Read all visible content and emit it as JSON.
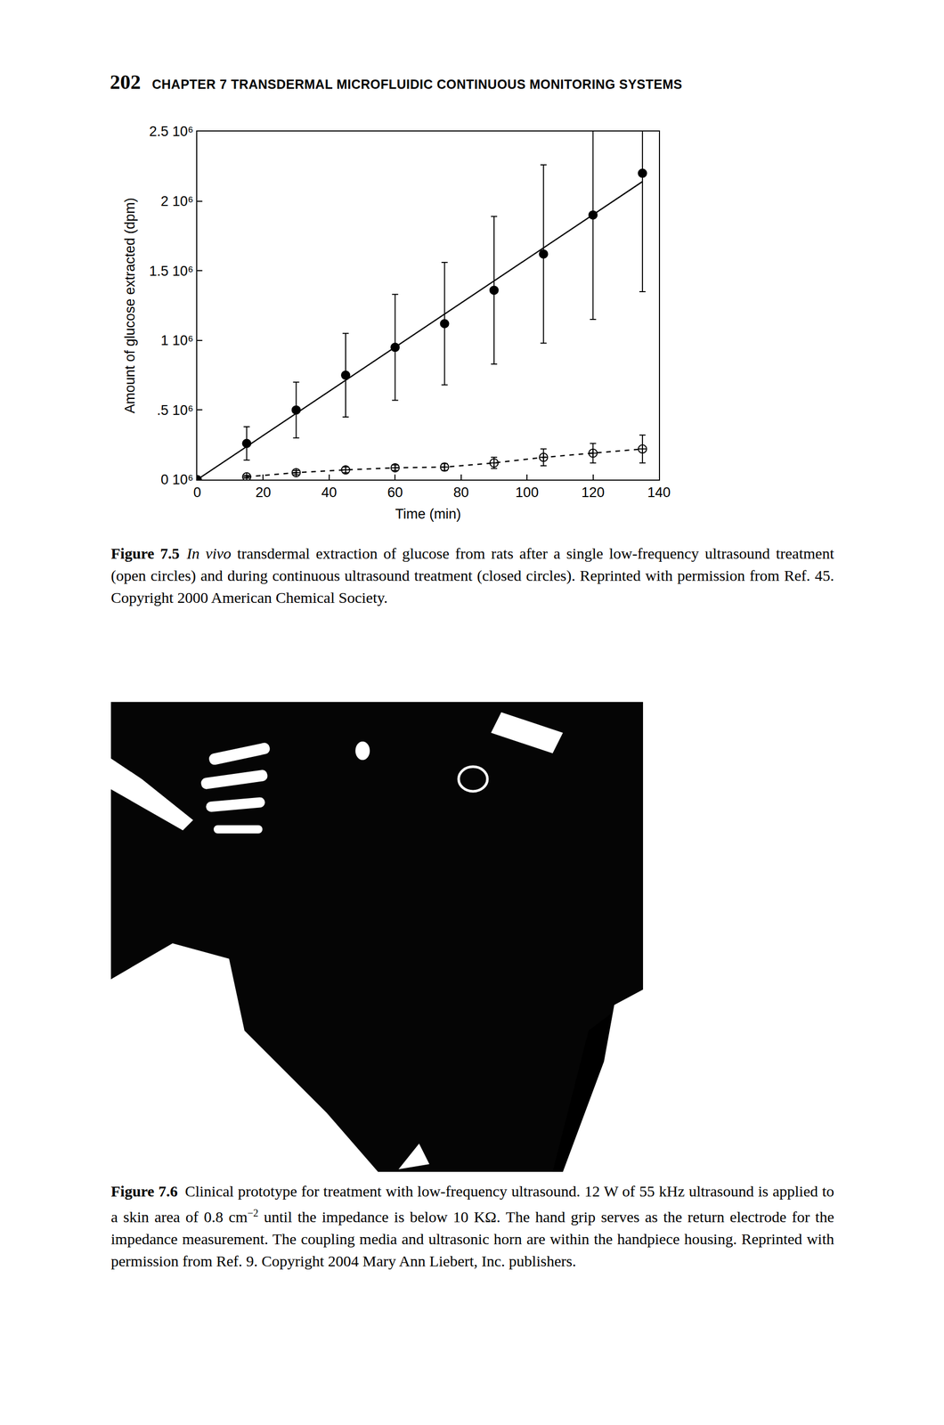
{
  "header": {
    "page": "202",
    "chapter": "CHAPTER 7  TRANSDERMAL MICROFLUIDIC CONTINUOUS MONITORING SYSTEMS"
  },
  "chart_data": {
    "type": "scatter",
    "x_label": "Time (min)",
    "y_label": "Amount of glucose extracted (dpm)",
    "xlim": [
      0,
      140
    ],
    "xticks": [
      0,
      20,
      40,
      60,
      80,
      100,
      120,
      140
    ],
    "ylim": [
      0,
      2500000
    ],
    "yticks": [
      {
        "value": 0,
        "label": "0 10⁶"
      },
      {
        "value": 500000,
        "label": ".5 10⁶"
      },
      {
        "value": 1000000,
        "label": "1 10⁶"
      },
      {
        "value": 1500000,
        "label": "1.5 10⁶"
      },
      {
        "value": 2000000,
        "label": "2 10⁶"
      },
      {
        "value": 2500000,
        "label": "2.5 10⁶"
      }
    ],
    "grid": false,
    "series": [
      {
        "type": "scatter",
        "marker": "circle",
        "color": "#000000",
        "x": [
          0,
          15,
          30,
          45,
          60,
          75,
          90,
          105,
          120,
          135
        ],
        "values": [
          0,
          260000,
          500000,
          750000,
          950000,
          1120000,
          1360000,
          1620000,
          1900000,
          2200000
        ],
        "error": [
          0,
          120000,
          200000,
          300000,
          380000,
          440000,
          530000,
          640000,
          750000,
          850000
        ]
      },
      {
        "type": "line",
        "line_style": "solid",
        "color": "#000000",
        "x": [
          0,
          135
        ],
        "values": [
          0,
          2140000
        ]
      },
      {
        "type": "scatter",
        "marker": "circle-cross-open",
        "line_style": "dashed",
        "color": "#000000",
        "x": [
          15,
          30,
          45,
          60,
          75,
          90,
          105,
          120,
          135
        ],
        "values": [
          20000,
          50000,
          70000,
          85000,
          90000,
          120000,
          160000,
          190000,
          220000
        ],
        "error": [
          10000,
          15000,
          20000,
          20000,
          25000,
          40000,
          60000,
          70000,
          100000
        ]
      }
    ]
  },
  "captions": [
    {
      "label": "Figure 7.5",
      "parts": [
        {
          "text": "In vivo",
          "italic": true
        },
        {
          "text": " transdermal extraction of glucose from rats after a single low-frequency ultrasound treatment (open circles) and during continuous ultrasound treatment (closed circles). Reprinted with permission from Ref. 45. Copyright 2000 American Chemical Society."
        }
      ]
    },
    {
      "label": "Figure 7.6",
      "parts": [
        {
          "text": "Clinical prototype for treatment with low-frequency ultrasound. 12 W of 55 kHz ultrasound is applied to a skin area of 0.8 cm"
        },
        {
          "text": "−2",
          "sup": true
        },
        {
          "text": " until the impedance is below 10 KΩ. The hand grip serves as the return electrode for the impedance measurement. The coupling media and ultrasonic horn are within the handpiece housing. Reprinted with permission from Ref. 9. Copyright 2004 Mary Ann Liebert, Inc. publishers."
        }
      ]
    }
  ]
}
